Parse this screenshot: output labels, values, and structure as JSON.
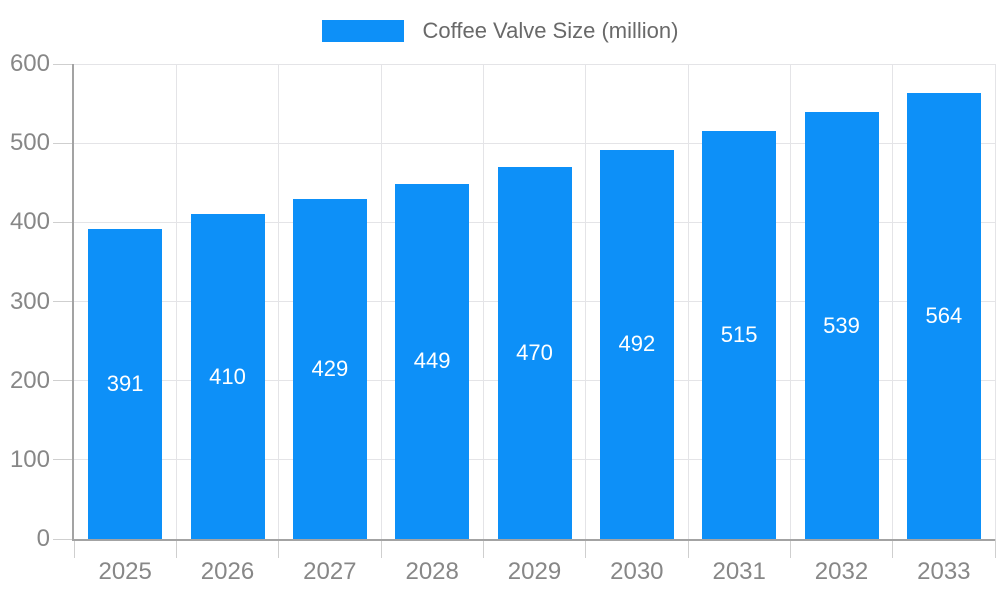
{
  "chart_data": {
    "type": "bar",
    "title": "Coffee Valve Size (million)",
    "categories": [
      "2025",
      "2026",
      "2027",
      "2028",
      "2029",
      "2030",
      "2031",
      "2032",
      "2033"
    ],
    "values": [
      391,
      410,
      429,
      449,
      470,
      492,
      515,
      539,
      564
    ],
    "xlabel": "",
    "ylabel": "",
    "ylim": [
      0,
      600
    ],
    "yticks": [
      0,
      100,
      200,
      300,
      400,
      500,
      600
    ],
    "grid": true,
    "legend_position": "top-center",
    "legend_label": "Coffee Valve Size (million)",
    "value_labels": "inside-center",
    "colors": {
      "bar_fill": "#0d90f8",
      "bar_border": "rgba(13,144,248,0.45)",
      "bar_value_text": "#ffffff",
      "gridline": "#e4e4e7",
      "axis_line": "#a3a3a3",
      "tick_mark": "#cfcfcf",
      "tick_text": "#878787",
      "legend_text": "#696969"
    }
  }
}
